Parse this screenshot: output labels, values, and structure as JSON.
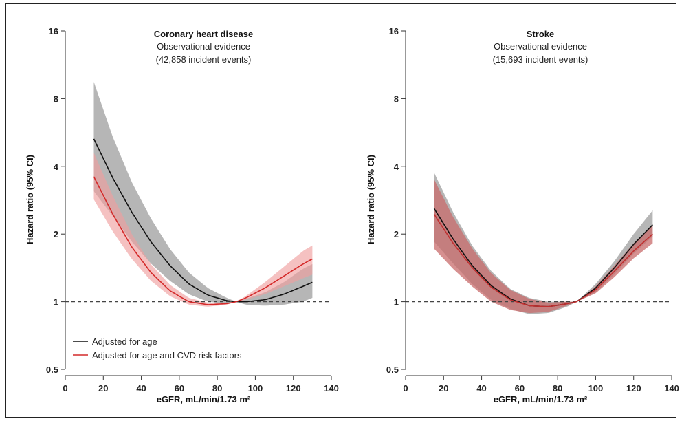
{
  "chart_data": [
    {
      "type": "line",
      "title": "Coronary heart disease",
      "subtitle_1": "Observational evidence",
      "subtitle_2": "(42,858 incident events)",
      "xlabel": "eGFR, mL/min/1.73 m²",
      "ylabel": "Hazard ratio (95% CI)",
      "y_scale": "log",
      "xlim": [
        0,
        140
      ],
      "ylim": [
        0.5,
        16
      ],
      "x_ticks": [
        "0",
        "20",
        "40",
        "60",
        "80",
        "100",
        "120",
        "140"
      ],
      "y_ticks": [
        "0.5",
        "1",
        "2",
        "4",
        "8",
        "16"
      ],
      "reference_line": 1,
      "legend_position": "bottom-left",
      "legend": [
        "Adjusted for age",
        "Adjusted for age and CVD risk factors"
      ],
      "series": [
        {
          "name": "Adjusted for age",
          "color": "#111111",
          "band_color": "#9e9e9e",
          "x": [
            15,
            25,
            35,
            45,
            55,
            65,
            75,
            85,
            90,
            95,
            105,
            115,
            125,
            130
          ],
          "y": [
            5.3,
            3.55,
            2.5,
            1.85,
            1.45,
            1.2,
            1.07,
            1.01,
            1.0,
            1.0,
            1.02,
            1.08,
            1.17,
            1.22
          ],
          "lower": [
            3.1,
            2.4,
            1.85,
            1.48,
            1.24,
            1.08,
            1.0,
            0.98,
            1.0,
            0.97,
            0.96,
            0.97,
            1.0,
            1.04
          ],
          "upper": [
            9.5,
            5.4,
            3.4,
            2.35,
            1.72,
            1.35,
            1.15,
            1.04,
            1.0,
            1.03,
            1.1,
            1.22,
            1.4,
            1.47
          ]
        },
        {
          "name": "Adjusted for age and CVD risk factors",
          "color": "#d42a2a",
          "band_color": "#f0a0a0",
          "x": [
            15,
            25,
            35,
            45,
            55,
            65,
            75,
            85,
            90,
            95,
            105,
            115,
            125,
            130
          ],
          "y": [
            3.6,
            2.45,
            1.75,
            1.35,
            1.12,
            1.0,
            0.97,
            0.98,
            1.0,
            1.04,
            1.15,
            1.3,
            1.47,
            1.55
          ],
          "lower": [
            2.85,
            2.05,
            1.55,
            1.24,
            1.06,
            0.97,
            0.95,
            0.97,
            1.0,
            1.02,
            1.08,
            1.17,
            1.27,
            1.32
          ],
          "upper": [
            4.6,
            2.95,
            2.0,
            1.47,
            1.19,
            1.04,
            0.99,
            0.99,
            1.0,
            1.06,
            1.22,
            1.43,
            1.68,
            1.78
          ]
        }
      ]
    },
    {
      "type": "line",
      "title": "Stroke",
      "subtitle_1": "Observational evidence",
      "subtitle_2": "(15,693 incident events)",
      "xlabel": "eGFR, mL/min/1.73 m²",
      "ylabel": "Hazard ratio (95% CI)",
      "y_scale": "log",
      "xlim": [
        0,
        140
      ],
      "ylim": [
        0.5,
        16
      ],
      "x_ticks": [
        "0",
        "20",
        "40",
        "60",
        "80",
        "100",
        "120",
        "140"
      ],
      "y_ticks": [
        "0.5",
        "1",
        "2",
        "4",
        "8",
        "16"
      ],
      "reference_line": 1,
      "series": [
        {
          "name": "Adjusted for age",
          "color": "#111111",
          "band_color": "#9e9e9e",
          "x": [
            15,
            25,
            35,
            45,
            55,
            65,
            75,
            85,
            90,
            100,
            110,
            120,
            130
          ],
          "y": [
            2.6,
            1.9,
            1.45,
            1.18,
            1.03,
            0.96,
            0.95,
            0.98,
            1.0,
            1.15,
            1.42,
            1.8,
            2.2
          ],
          "lower": [
            1.85,
            1.48,
            1.2,
            1.02,
            0.93,
            0.88,
            0.89,
            0.95,
            1.0,
            1.1,
            1.33,
            1.64,
            1.95
          ],
          "upper": [
            3.75,
            2.5,
            1.78,
            1.37,
            1.14,
            1.04,
            1.0,
            1.0,
            1.0,
            1.2,
            1.52,
            2.0,
            2.55
          ]
        },
        {
          "name": "Adjusted for age and CVD risk factors",
          "color": "#c03030",
          "band_color": "#c86b6b",
          "x": [
            15,
            25,
            35,
            45,
            55,
            65,
            75,
            85,
            90,
            100,
            110,
            120,
            130
          ],
          "y": [
            2.45,
            1.82,
            1.42,
            1.16,
            1.02,
            0.96,
            0.95,
            0.98,
            1.0,
            1.13,
            1.37,
            1.68,
            2.0
          ],
          "lower": [
            1.72,
            1.4,
            1.17,
            1.0,
            0.92,
            0.89,
            0.9,
            0.96,
            1.0,
            1.09,
            1.29,
            1.56,
            1.82
          ],
          "upper": [
            3.5,
            2.38,
            1.73,
            1.34,
            1.13,
            1.03,
            0.99,
            1.0,
            1.0,
            1.17,
            1.45,
            1.82,
            2.2
          ]
        }
      ]
    }
  ]
}
